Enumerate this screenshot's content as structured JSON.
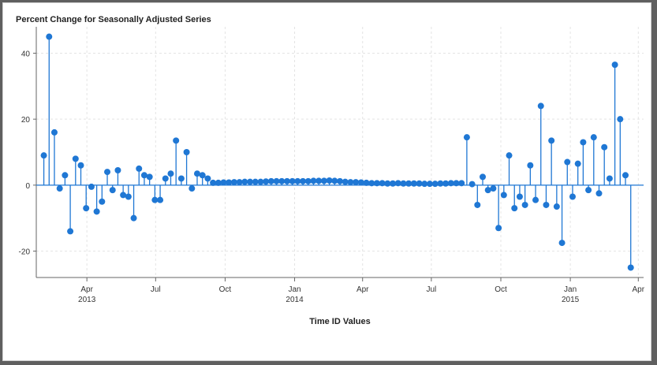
{
  "chart_data": {
    "type": "needle",
    "title": "Percent Change for Seasonally Adjusted Series",
    "xlabel": "Time ID Values",
    "ylabel": "",
    "ylim": [
      -28,
      48
    ],
    "xlim": [
      "2013-01-24",
      "2015-04-08"
    ],
    "y_ticks": [
      -20,
      0,
      20,
      40
    ],
    "x_ticks": [
      {
        "date": "2013-04-01",
        "label": "Apr",
        "year": "2013"
      },
      {
        "date": "2013-07-01",
        "label": "Jul",
        "year": ""
      },
      {
        "date": "2013-10-01",
        "label": "Oct",
        "year": ""
      },
      {
        "date": "2014-01-01",
        "label": "Jan",
        "year": "2014"
      },
      {
        "date": "2014-04-01",
        "label": "Apr",
        "year": ""
      },
      {
        "date": "2014-07-01",
        "label": "Jul",
        "year": ""
      },
      {
        "date": "2014-10-01",
        "label": "Oct",
        "year": ""
      },
      {
        "date": "2015-01-01",
        "label": "Jan",
        "year": "2015"
      },
      {
        "date": "2015-04-01",
        "label": "Apr",
        "year": ""
      }
    ],
    "grid": true,
    "color": "#1f77d4",
    "series": [
      {
        "x": [
          "2013-02-03",
          "2013-02-10",
          "2013-02-17",
          "2013-02-24",
          "2013-03-03",
          "2013-03-10",
          "2013-03-17",
          "2013-03-24",
          "2013-03-31",
          "2013-04-07",
          "2013-04-14",
          "2013-04-21",
          "2013-04-28",
          "2013-05-05",
          "2013-05-12",
          "2013-05-19",
          "2013-05-26",
          "2013-06-02",
          "2013-06-09",
          "2013-06-16",
          "2013-06-23",
          "2013-06-30",
          "2013-07-07",
          "2013-07-14",
          "2013-07-21",
          "2013-07-28",
          "2013-08-04",
          "2013-08-11",
          "2013-08-18",
          "2013-08-25",
          "2013-09-01",
          "2013-09-08",
          "2013-09-15",
          "2013-09-22",
          "2013-09-29",
          "2013-10-06",
          "2013-10-13",
          "2013-10-20",
          "2013-10-27",
          "2013-11-03",
          "2013-11-10",
          "2013-11-17",
          "2013-11-24",
          "2013-12-01",
          "2013-12-08",
          "2013-12-15",
          "2013-12-22",
          "2013-12-29",
          "2014-01-05",
          "2014-01-12",
          "2014-01-19",
          "2014-01-26",
          "2014-02-02",
          "2014-02-09",
          "2014-02-16",
          "2014-02-23",
          "2014-03-02",
          "2014-03-09",
          "2014-03-16",
          "2014-03-23",
          "2014-03-30",
          "2014-04-06",
          "2014-04-13",
          "2014-04-20",
          "2014-04-27",
          "2014-05-04",
          "2014-05-11",
          "2014-05-18",
          "2014-05-25",
          "2014-06-01",
          "2014-06-08",
          "2014-06-15",
          "2014-06-22",
          "2014-06-29",
          "2014-07-06",
          "2014-07-13",
          "2014-07-20",
          "2014-07-27",
          "2014-08-03",
          "2014-08-10",
          "2014-08-17",
          "2014-08-24",
          "2014-08-31",
          "2014-09-07",
          "2014-09-14",
          "2014-09-21",
          "2014-09-28",
          "2014-10-05",
          "2014-10-12",
          "2014-10-19",
          "2014-10-26",
          "2014-11-02",
          "2014-11-09",
          "2014-11-16",
          "2014-11-23",
          "2014-11-30",
          "2014-12-07",
          "2014-12-14",
          "2014-12-21",
          "2014-12-28",
          "2015-01-04",
          "2015-01-11",
          "2015-01-18",
          "2015-01-25",
          "2015-02-01",
          "2015-02-08",
          "2015-02-15",
          "2015-02-22",
          "2015-03-01",
          "2015-03-08",
          "2015-03-15",
          "2015-03-22"
        ],
        "y": [
          9,
          45,
          16,
          -1,
          3,
          -14,
          8,
          6,
          -7,
          -0.5,
          -8,
          -5,
          4,
          -1.5,
          4.5,
          -3,
          -3.5,
          -10,
          5,
          3,
          2.5,
          -4.5,
          -4.5,
          2,
          3.5,
          13.5,
          2,
          10,
          -1,
          3.5,
          3,
          2,
          0.7,
          0.7,
          0.8,
          0.8,
          0.9,
          0.9,
          1,
          1,
          1,
          1,
          1.1,
          1.2,
          1.2,
          1.2,
          1.2,
          1.2,
          1.2,
          1.2,
          1.2,
          1.3,
          1.3,
          1.3,
          1.4,
          1.3,
          1.2,
          1,
          0.9,
          0.9,
          0.8,
          0.7,
          0.6,
          0.6,
          0.6,
          0.5,
          0.5,
          0.6,
          0.5,
          0.5,
          0.5,
          0.5,
          0.4,
          0.4,
          0.4,
          0.5,
          0.5,
          0.6,
          0.6,
          0.6,
          14.5,
          0.3,
          -6,
          2.5,
          -1.5,
          -1,
          -13,
          -3,
          9,
          -7,
          -3.5,
          -6,
          6,
          -4.5,
          24,
          -6,
          13.5,
          -6.5,
          -17.5,
          7,
          -3.5,
          6.5,
          13,
          -1.5,
          14.5,
          -2.5,
          11.5,
          2,
          36.5,
          20,
          3,
          -25
        ]
      }
    ]
  }
}
